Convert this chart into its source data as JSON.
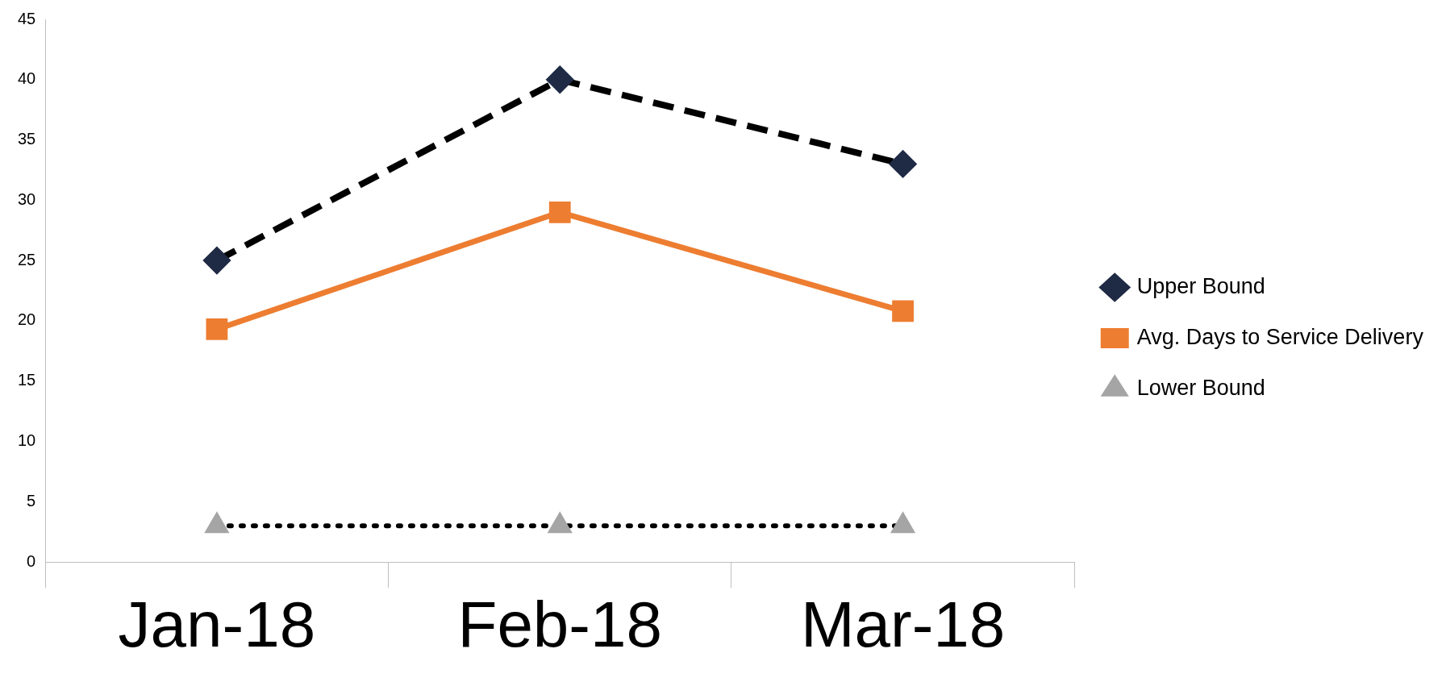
{
  "chart_data": {
    "type": "line",
    "categories": [
      "Jan-18",
      "Feb-18",
      "Mar-18"
    ],
    "series": [
      {
        "name": "Upper Bound",
        "color": "#000000",
        "values": [
          25,
          40,
          33
        ],
        "marker": "diamond",
        "line_style": "dashed",
        "colors": [
          "#1f2a44",
          "#1f2a44",
          "#1f2a44"
        ]
      },
      {
        "name": "Avg. Days to Service Delivery",
        "color": "#ed7d31",
        "values": [
          19.3,
          29,
          20.8
        ],
        "marker": "square",
        "line_style": "solid"
      },
      {
        "name": "Lower Bound",
        "color": "#000000",
        "values": [
          3,
          3,
          3
        ],
        "marker": "triangle",
        "line_style": "dotted",
        "colors": [
          "#a5a5a5",
          "#a5a5a5",
          "#a5a5a5"
        ]
      }
    ],
    "ylim": [
      0,
      45
    ],
    "yticks": [
      0,
      5,
      10,
      15,
      20,
      25,
      30,
      35,
      40,
      45
    ],
    "grid": false,
    "legend": "right"
  }
}
